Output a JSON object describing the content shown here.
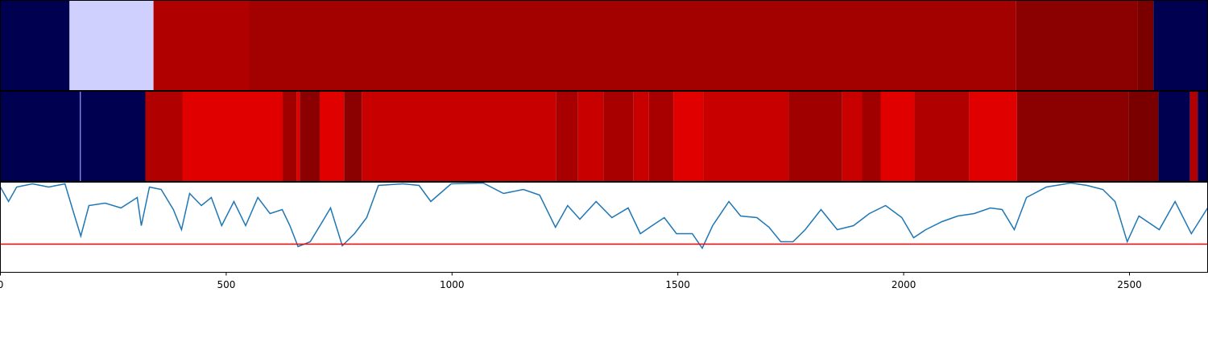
{
  "chart_data": {
    "type": "line",
    "xlim": [
      0,
      2673
    ],
    "xticks": [
      0,
      500,
      1000,
      1500,
      2000,
      2500
    ],
    "ylim": [
      0,
      112
    ],
    "bands": [
      {
        "segments": [
          {
            "start": 0,
            "end": 153,
            "color": "#000050"
          },
          {
            "start": 153,
            "end": 339,
            "color": "#d0d0ff"
          },
          {
            "start": 339,
            "end": 551,
            "color": "#b00000"
          },
          {
            "start": 551,
            "end": 2249,
            "color": "#a30000"
          },
          {
            "start": 2249,
            "end": 2518,
            "color": "#8b0000"
          },
          {
            "start": 2518,
            "end": 2553,
            "color": "#7a0000"
          },
          {
            "start": 2553,
            "end": 2673,
            "color": "#000050"
          }
        ]
      },
      {
        "segments": [
          {
            "start": 0,
            "end": 176,
            "color": "#000050"
          },
          {
            "start": 176,
            "end": 178,
            "color": "#8080ff"
          },
          {
            "start": 178,
            "end": 321,
            "color": "#000050"
          },
          {
            "start": 321,
            "end": 403,
            "color": "#b00000"
          },
          {
            "start": 403,
            "end": 625,
            "color": "#e00000"
          },
          {
            "start": 625,
            "end": 656,
            "color": "#a00000"
          },
          {
            "start": 656,
            "end": 663,
            "color": "#e00000"
          },
          {
            "start": 663,
            "end": 707,
            "color": "#8b0000"
          },
          {
            "start": 707,
            "end": 761,
            "color": "#e00000"
          },
          {
            "start": 761,
            "end": 800,
            "color": "#8b0000"
          },
          {
            "start": 800,
            "end": 1230,
            "color": "#c80000"
          },
          {
            "start": 1230,
            "end": 1279,
            "color": "#a80000"
          },
          {
            "start": 1279,
            "end": 1335,
            "color": "#c80000"
          },
          {
            "start": 1335,
            "end": 1402,
            "color": "#a80000"
          },
          {
            "start": 1402,
            "end": 1436,
            "color": "#c80000"
          },
          {
            "start": 1436,
            "end": 1490,
            "color": "#a80000"
          },
          {
            "start": 1490,
            "end": 1556,
            "color": "#e00000"
          },
          {
            "start": 1556,
            "end": 1745,
            "color": "#c80000"
          },
          {
            "start": 1745,
            "end": 1864,
            "color": "#a00000"
          },
          {
            "start": 1864,
            "end": 1908,
            "color": "#c80000"
          },
          {
            "start": 1908,
            "end": 1949,
            "color": "#a00000"
          },
          {
            "start": 1949,
            "end": 2024,
            "color": "#e00000"
          },
          {
            "start": 2024,
            "end": 2145,
            "color": "#b00000"
          },
          {
            "start": 2145,
            "end": 2251,
            "color": "#e00000"
          },
          {
            "start": 2251,
            "end": 2498,
            "color": "#8b0000"
          },
          {
            "start": 2498,
            "end": 2564,
            "color": "#7a0000"
          },
          {
            "start": 2564,
            "end": 2634,
            "color": "#000050"
          },
          {
            "start": 2634,
            "end": 2651,
            "color": "#b00000"
          },
          {
            "start": 2651,
            "end": 2673,
            "color": "#000050"
          }
        ]
      }
    ],
    "series": [
      {
        "color": "#1f77b4",
        "x": [
          0,
          18,
          36,
          71,
          107,
          143,
          160,
          178,
          196,
          232,
          267,
          303,
          312,
          330,
          356,
          383,
          401,
          419,
          445,
          467,
          490,
          517,
          543,
          570,
          597,
          624,
          641,
          659,
          686,
          713,
          731,
          757,
          784,
          811,
          837,
          891,
          927,
          953,
          998,
          1069,
          1114,
          1158,
          1194,
          1229,
          1256,
          1283,
          1319,
          1354,
          1390,
          1417,
          1443,
          1470,
          1497,
          1532,
          1554,
          1577,
          1613,
          1639,
          1675,
          1702,
          1728,
          1755,
          1782,
          1817,
          1853,
          1889,
          1924,
          1960,
          1996,
          2022,
          2049,
          2085,
          2120,
          2156,
          2192,
          2218,
          2245,
          2272,
          2316,
          2370,
          2406,
          2441,
          2468,
          2495,
          2521,
          2566,
          2601,
          2637,
          2673
        ],
        "values": [
          106,
          88,
          106,
          110,
          106,
          110,
          78,
          45,
          83,
          86,
          80,
          93,
          58,
          106,
          103,
          78,
          53,
          98,
          83,
          93,
          58,
          88,
          58,
          93,
          73,
          78,
          58,
          32,
          38,
          63,
          80,
          33,
          48,
          68,
          108,
          110,
          108,
          88,
          110,
          111,
          98,
          103,
          96,
          56,
          83,
          66,
          88,
          68,
          80,
          48,
          58,
          68,
          48,
          48,
          30,
          58,
          88,
          70,
          68,
          56,
          38,
          38,
          53,
          78,
          53,
          58,
          73,
          83,
          68,
          43,
          53,
          63,
          70,
          73,
          80,
          78,
          53,
          93,
          106,
          111,
          108,
          103,
          88,
          38,
          70,
          53,
          88,
          48,
          80
        ]
      }
    ],
    "threshold": {
      "value": 35,
      "color": "#ff0000"
    }
  }
}
